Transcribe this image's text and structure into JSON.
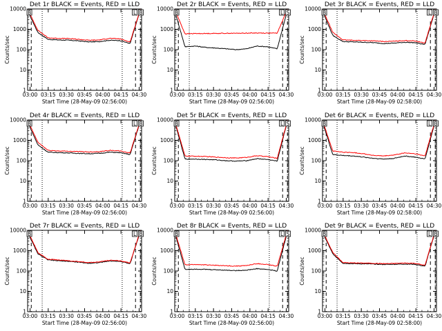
{
  "chart_data": [
    {
      "type": "line",
      "title": "Det 1r BLACK = Events, RED = LLD",
      "xlabel": "Start Time (28-May-09 02:56:00)",
      "ylabel": "Counts/sec",
      "x_ticks": [
        "03:00",
        "03:15",
        "03:30",
        "03:45",
        "04:00",
        "04:15",
        "04:30"
      ],
      "y_ticks": [
        "1",
        "10",
        "100",
        "1000",
        "10000"
      ],
      "ylim": [
        1,
        10000
      ],
      "y_scale": "log",
      "series": [
        {
          "color": "#000000",
          "values": [
            8000,
            700,
            320,
            300,
            290,
            270,
            240,
            250,
            290,
            280,
            200,
            9000
          ]
        },
        {
          "color": "#ff0000",
          "values": [
            9500,
            900,
            380,
            360,
            350,
            320,
            290,
            300,
            360,
            340,
            240,
            9800
          ]
        }
      ],
      "vlines_dashed": [
        "03:01",
        "04:27",
        "04:31"
      ],
      "vlines_dotted": [
        "03:10",
        "04:16"
      ],
      "markers": [
        "B",
        "L",
        "B"
      ]
    },
    {
      "type": "line",
      "title": "Det 2r BLACK = Events, RED = LLD",
      "xlabel": "Start Time (28-May-09 02:56:00)",
      "ylabel": "Counts/sec",
      "x_ticks": [
        "03:00",
        "03:15",
        "03:30",
        "03:45",
        "04:00",
        "04:15",
        "04:30"
      ],
      "y_ticks": [
        "1",
        "10",
        "100",
        "1000",
        "10000"
      ],
      "ylim": [
        1,
        10000
      ],
      "y_scale": "log",
      "series": [
        {
          "color": "#000000",
          "values": [
            8000,
            140,
            150,
            130,
            120,
            110,
            100,
            110,
            150,
            140,
            110,
            9000
          ]
        },
        {
          "color": "#ff0000",
          "values": [
            9500,
            600,
            620,
            620,
            630,
            640,
            640,
            650,
            660,
            650,
            650,
            9800
          ]
        }
      ],
      "vlines_dashed": [
        "03:01",
        "04:27",
        "04:31"
      ],
      "vlines_dotted": [
        "03:10",
        "04:16"
      ],
      "markers": [
        "B",
        "L",
        "S"
      ]
    },
    {
      "type": "line",
      "title": "Det 3r BLACK = Events, RED = LLD",
      "xlabel": "Start Time (28-May-09 02:58:00)",
      "ylabel": "Counts/sec",
      "x_ticks": [
        "03:00",
        "03:15",
        "03:30",
        "03:45",
        "04:00",
        "04:15",
        "04:30"
      ],
      "y_ticks": [
        "1",
        "10",
        "100",
        "1000",
        "10000"
      ],
      "ylim": [
        1,
        10000
      ],
      "y_scale": "log",
      "series": [
        {
          "color": "#000000",
          "values": [
            8000,
            500,
            250,
            240,
            230,
            220,
            200,
            210,
            230,
            220,
            180,
            9000
          ]
        },
        {
          "color": "#ff0000",
          "values": [
            9500,
            700,
            300,
            290,
            280,
            270,
            250,
            260,
            280,
            270,
            210,
            9800
          ]
        }
      ],
      "vlines_dashed": [
        "03:01",
        "04:27",
        "04:31"
      ],
      "vlines_dotted": [
        "03:10",
        "04:16"
      ],
      "markers": [
        "B",
        "L",
        "B"
      ]
    },
    {
      "type": "line",
      "title": "Det 4r BLACK = Events, RED = LLD",
      "xlabel": "Start Time (28-May-09 02:56:00)",
      "ylabel": "Counts/sec",
      "x_ticks": [
        "03:00",
        "03:15",
        "03:30",
        "03:45",
        "04:00",
        "04:15",
        "04:30"
      ],
      "y_ticks": [
        "1",
        "10",
        "100",
        "1000",
        "10000"
      ],
      "ylim": [
        1,
        10000
      ],
      "y_scale": "log",
      "series": [
        {
          "color": "#000000",
          "values": [
            8000,
            600,
            260,
            250,
            240,
            230,
            220,
            230,
            260,
            250,
            200,
            9000
          ]
        },
        {
          "color": "#ff0000",
          "values": [
            9500,
            800,
            320,
            300,
            290,
            280,
            270,
            280,
            320,
            300,
            240,
            9800
          ]
        }
      ],
      "vlines_dashed": [
        "03:01",
        "04:27",
        "04:31"
      ],
      "vlines_dotted": [
        "03:10",
        "04:16"
      ],
      "markers": [
        "B",
        "L",
        "B"
      ]
    },
    {
      "type": "line",
      "title": "Det 5r BLACK = Events, RED = LLD",
      "xlabel": "Start Time (28-May-09 02:56:00)",
      "ylabel": "Counts/sec",
      "x_ticks": [
        "03:00",
        "03:15",
        "03:30",
        "03:45",
        "04:00",
        "04:15",
        "04:30"
      ],
      "y_ticks": [
        "1",
        "10",
        "100",
        "1000",
        "10000"
      ],
      "ylim": [
        1,
        10000
      ],
      "y_scale": "log",
      "series": [
        {
          "color": "#000000",
          "values": [
            8000,
            120,
            120,
            115,
            110,
            100,
            95,
            100,
            125,
            115,
            95,
            9000
          ]
        },
        {
          "color": "#ff0000",
          "values": [
            9500,
            170,
            165,
            160,
            150,
            140,
            135,
            145,
            175,
            160,
            130,
            9800
          ]
        }
      ],
      "vlines_dashed": [
        "03:01",
        "04:27",
        "04:31"
      ],
      "vlines_dotted": [
        "03:10",
        "04:16"
      ],
      "markers": [
        "B",
        "L",
        "S"
      ]
    },
    {
      "type": "line",
      "title": "Det 6r BLACK = Events, RED = LLD",
      "xlabel": "Start Time (28-May-09 02:58:00)",
      "ylabel": "Counts/sec",
      "x_ticks": [
        "03:00",
        "03:15",
        "03:30",
        "03:45",
        "04:00",
        "04:15",
        "04:30"
      ],
      "y_ticks": [
        "1",
        "10",
        "100",
        "1000",
        "10000"
      ],
      "ylim": [
        1,
        10000
      ],
      "y_scale": "log",
      "series": [
        {
          "color": "#000000",
          "values": [
            8000,
            200,
            180,
            170,
            150,
            130,
            120,
            130,
            170,
            150,
            120,
            9000
          ]
        },
        {
          "color": "#ff0000",
          "values": [
            9500,
            300,
            260,
            250,
            220,
            180,
            170,
            190,
            240,
            220,
            170,
            9800
          ]
        }
      ],
      "vlines_dashed": [
        "03:01",
        "04:27",
        "04:31"
      ],
      "vlines_dotted": [
        "03:10",
        "04:16"
      ],
      "markers": [
        "B",
        "L",
        "B"
      ]
    },
    {
      "type": "line",
      "title": "Det 7r BLACK = Events, RED = LLD",
      "xlabel": "Start Time (28-May-09 02:56:00)",
      "ylabel": "Counts/sec",
      "x_ticks": [
        "03:00",
        "03:15",
        "03:30",
        "03:45",
        "04:00",
        "04:15",
        "04:30"
      ],
      "y_ticks": [
        "1",
        "10",
        "100",
        "1000",
        "10000"
      ],
      "ylim": [
        1,
        10000
      ],
      "y_scale": "log",
      "series": [
        {
          "color": "#000000",
          "values": [
            8000,
            700,
            350,
            320,
            300,
            270,
            240,
            260,
            310,
            300,
            230,
            9000
          ]
        },
        {
          "color": "#ff0000",
          "values": [
            9500,
            800,
            380,
            350,
            320,
            290,
            260,
            280,
            340,
            320,
            250,
            9800
          ]
        }
      ],
      "vlines_dashed": [
        "03:01",
        "04:27",
        "04:31"
      ],
      "vlines_dotted": [
        "03:10",
        "04:16"
      ],
      "markers": [
        "B",
        "L",
        "B"
      ]
    },
    {
      "type": "line",
      "title": "Det 8r BLACK = Events, RED = LLD",
      "xlabel": "Start Time (28-May-09 02:56:00)",
      "ylabel": "Counts/sec",
      "x_ticks": [
        "03:00",
        "03:15",
        "03:30",
        "03:45",
        "04:00",
        "04:15",
        "04:30"
      ],
      "y_ticks": [
        "1",
        "10",
        "100",
        "1000",
        "10000"
      ],
      "ylim": [
        1,
        10000
      ],
      "y_scale": "log",
      "series": [
        {
          "color": "#000000",
          "values": [
            8000,
            120,
            125,
            120,
            115,
            110,
            105,
            110,
            130,
            120,
            100,
            9000
          ]
        },
        {
          "color": "#ff0000",
          "values": [
            9500,
            200,
            210,
            200,
            190,
            180,
            175,
            185,
            230,
            210,
            170,
            9800
          ]
        }
      ],
      "vlines_dashed": [
        "03:01",
        "04:27",
        "04:31"
      ],
      "vlines_dotted": [
        "03:10",
        "04:16"
      ],
      "markers": [
        "B",
        "L",
        "S"
      ]
    },
    {
      "type": "line",
      "title": "Det 9r BLACK = Events, RED = LLD",
      "xlabel": "Start Time (28-May-09 02:58:00)",
      "ylabel": "Counts/sec",
      "x_ticks": [
        "03:00",
        "03:15",
        "03:30",
        "03:45",
        "04:00",
        "04:15",
        "04:30"
      ],
      "y_ticks": [
        "1",
        "10",
        "100",
        "1000",
        "10000"
      ],
      "ylim": [
        1,
        10000
      ],
      "y_scale": "log",
      "series": [
        {
          "color": "#000000",
          "values": [
            8000,
            700,
            240,
            230,
            225,
            220,
            210,
            215,
            220,
            215,
            170,
            9000
          ]
        },
        {
          "color": "#ff0000",
          "values": [
            9500,
            800,
            260,
            250,
            245,
            240,
            230,
            235,
            245,
            240,
            190,
            9800
          ]
        }
      ],
      "vlines_dashed": [
        "03:01",
        "04:27",
        "04:31"
      ],
      "vlines_dotted": [
        "03:10",
        "04:16"
      ],
      "markers": [
        "B",
        "L",
        "B"
      ]
    }
  ]
}
